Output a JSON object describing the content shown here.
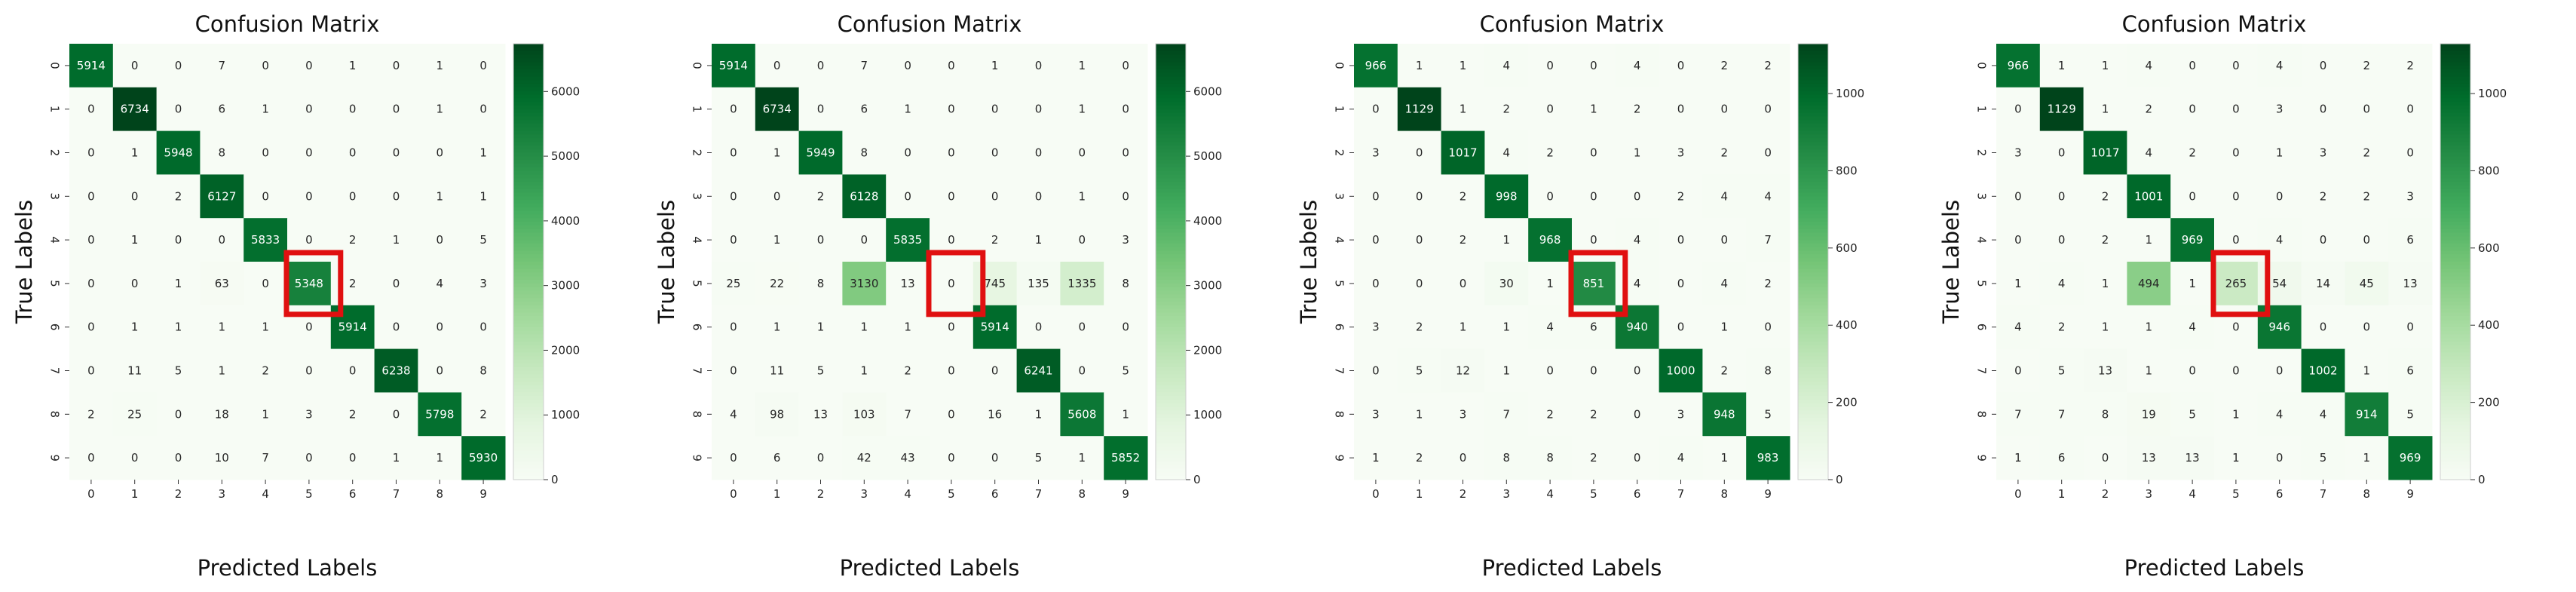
{
  "chart_data": [
    {
      "type": "heatmap",
      "title": "Confusion Matrix",
      "xlabel": "Predicted Labels",
      "ylabel": "True Labels",
      "x_ticks": [
        "0",
        "1",
        "2",
        "3",
        "4",
        "5",
        "6",
        "7",
        "8",
        "9"
      ],
      "y_ticks": [
        "0",
        "1",
        "2",
        "3",
        "4",
        "5",
        "6",
        "7",
        "8",
        "9"
      ],
      "colorbar_ticks": [
        0,
        1000,
        2000,
        3000,
        4000,
        5000,
        6000
      ],
      "colorbar_range": [
        0,
        6738
      ],
      "highlight": {
        "row": 5,
        "col": 5,
        "color": "#e01010"
      },
      "matrix": [
        [
          5914,
          0,
          0,
          7,
          0,
          0,
          1,
          0,
          1,
          0
        ],
        [
          0,
          6734,
          0,
          6,
          1,
          0,
          0,
          0,
          1,
          0
        ],
        [
          0,
          1,
          5948,
          8,
          0,
          0,
          0,
          0,
          0,
          1
        ],
        [
          0,
          0,
          2,
          6127,
          0,
          0,
          0,
          0,
          1,
          1
        ],
        [
          0,
          1,
          0,
          0,
          5833,
          0,
          2,
          1,
          0,
          5
        ],
        [
          0,
          0,
          1,
          63,
          0,
          5348,
          2,
          0,
          4,
          3
        ],
        [
          0,
          1,
          1,
          1,
          1,
          0,
          5914,
          0,
          0,
          0
        ],
        [
          0,
          11,
          5,
          1,
          2,
          0,
          0,
          6238,
          0,
          8
        ],
        [
          2,
          25,
          0,
          18,
          1,
          3,
          2,
          0,
          5798,
          2
        ],
        [
          0,
          0,
          0,
          10,
          7,
          0,
          0,
          1,
          1,
          5930
        ]
      ]
    },
    {
      "type": "heatmap",
      "title": "Confusion Matrix",
      "xlabel": "Predicted Labels",
      "ylabel": "True Labels",
      "x_ticks": [
        "0",
        "1",
        "2",
        "3",
        "4",
        "5",
        "6",
        "7",
        "8",
        "9"
      ],
      "y_ticks": [
        "0",
        "1",
        "2",
        "3",
        "4",
        "5",
        "6",
        "7",
        "8",
        "9"
      ],
      "colorbar_ticks": [
        0,
        1000,
        2000,
        3000,
        4000,
        5000,
        6000
      ],
      "colorbar_range": [
        0,
        6738
      ],
      "highlight": {
        "row": 5,
        "col": 5,
        "color": "#e01010"
      },
      "matrix": [
        [
          5914,
          0,
          0,
          7,
          0,
          0,
          1,
          0,
          1,
          0
        ],
        [
          0,
          6734,
          0,
          6,
          1,
          0,
          0,
          0,
          1,
          0
        ],
        [
          0,
          1,
          5949,
          8,
          0,
          0,
          0,
          0,
          0,
          0
        ],
        [
          0,
          0,
          2,
          6128,
          0,
          0,
          0,
          0,
          1,
          0
        ],
        [
          0,
          1,
          0,
          0,
          5835,
          0,
          2,
          1,
          0,
          3
        ],
        [
          25,
          22,
          8,
          3130,
          13,
          0,
          745,
          135,
          1335,
          8
        ],
        [
          0,
          1,
          1,
          1,
          1,
          0,
          5914,
          0,
          0,
          0
        ],
        [
          0,
          11,
          5,
          1,
          2,
          0,
          0,
          6241,
          0,
          5
        ],
        [
          4,
          98,
          13,
          103,
          7,
          0,
          16,
          1,
          5608,
          1
        ],
        [
          0,
          6,
          0,
          42,
          43,
          0,
          0,
          5,
          1,
          5852
        ]
      ]
    },
    {
      "type": "heatmap",
      "title": "Confusion Matrix",
      "xlabel": "Predicted Labels",
      "ylabel": "True Labels",
      "x_ticks": [
        "0",
        "1",
        "2",
        "3",
        "4",
        "5",
        "6",
        "7",
        "8",
        "9"
      ],
      "y_ticks": [
        "0",
        "1",
        "2",
        "3",
        "4",
        "5",
        "6",
        "7",
        "8",
        "9"
      ],
      "colorbar_ticks": [
        0,
        200,
        400,
        600,
        800,
        1000
      ],
      "colorbar_range": [
        0,
        1129
      ],
      "highlight": {
        "row": 5,
        "col": 5,
        "color": "#e01010"
      },
      "matrix": [
        [
          966,
          1,
          1,
          4,
          0,
          0,
          4,
          0,
          2,
          2
        ],
        [
          0,
          1129,
          1,
          2,
          0,
          1,
          2,
          0,
          0,
          0
        ],
        [
          3,
          0,
          1017,
          4,
          2,
          0,
          1,
          3,
          2,
          0
        ],
        [
          0,
          0,
          2,
          998,
          0,
          0,
          0,
          2,
          4,
          4
        ],
        [
          0,
          0,
          2,
          1,
          968,
          0,
          4,
          0,
          0,
          7
        ],
        [
          0,
          0,
          0,
          30,
          1,
          851,
          4,
          0,
          4,
          2
        ],
        [
          3,
          2,
          1,
          1,
          4,
          6,
          940,
          0,
          1,
          0
        ],
        [
          0,
          5,
          12,
          1,
          0,
          0,
          0,
          1000,
          2,
          8
        ],
        [
          3,
          1,
          3,
          7,
          2,
          2,
          0,
          3,
          948,
          5
        ],
        [
          1,
          2,
          0,
          8,
          8,
          2,
          0,
          4,
          1,
          983
        ]
      ]
    },
    {
      "type": "heatmap",
      "title": "Confusion Matrix",
      "xlabel": "Predicted Labels",
      "ylabel": "True Labels",
      "x_ticks": [
        "0",
        "1",
        "2",
        "3",
        "4",
        "5",
        "6",
        "7",
        "8",
        "9"
      ],
      "y_ticks": [
        "0",
        "1",
        "2",
        "3",
        "4",
        "5",
        "6",
        "7",
        "8",
        "9"
      ],
      "colorbar_ticks": [
        0,
        200,
        400,
        600,
        800,
        1000
      ],
      "colorbar_range": [
        0,
        1129
      ],
      "highlight": {
        "row": 5,
        "col": 5,
        "color": "#e01010"
      },
      "matrix": [
        [
          966,
          1,
          1,
          4,
          0,
          0,
          4,
          0,
          2,
          2
        ],
        [
          0,
          1129,
          1,
          2,
          0,
          0,
          3,
          0,
          0,
          0
        ],
        [
          3,
          0,
          1017,
          4,
          2,
          0,
          1,
          3,
          2,
          0
        ],
        [
          0,
          0,
          2,
          1001,
          0,
          0,
          0,
          2,
          2,
          3
        ],
        [
          0,
          0,
          2,
          1,
          969,
          0,
          4,
          0,
          0,
          6
        ],
        [
          1,
          4,
          1,
          494,
          1,
          265,
          54,
          14,
          45,
          13
        ],
        [
          4,
          2,
          1,
          1,
          4,
          0,
          946,
          0,
          0,
          0
        ],
        [
          0,
          5,
          13,
          1,
          0,
          0,
          0,
          1002,
          1,
          6
        ],
        [
          7,
          7,
          8,
          19,
          5,
          1,
          4,
          4,
          914,
          5
        ],
        [
          1,
          6,
          0,
          13,
          13,
          1,
          0,
          5,
          1,
          969
        ]
      ]
    }
  ]
}
